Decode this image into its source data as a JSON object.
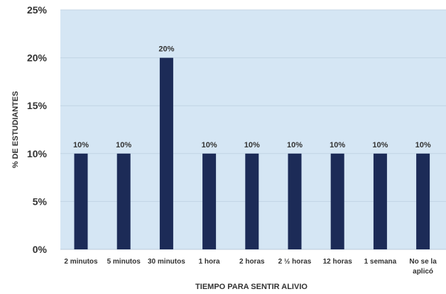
{
  "chart_data": {
    "type": "bar",
    "title": "",
    "xlabel": "TIEMPO PARA SENTIR ALIVIO",
    "ylabel": "% DE ESTUDIANTES",
    "ylim": [
      0,
      25
    ],
    "yticks": [
      "0%",
      "5%",
      "10%",
      "15%",
      "20%",
      "25%"
    ],
    "ytick_values": [
      0,
      5,
      10,
      15,
      20,
      25
    ],
    "categories": [
      "2 minutos",
      "5 minutos",
      "30 minutos",
      "1 hora",
      "2 horas",
      "2 ½ horas",
      "12 horas",
      "1 semana",
      "No se la aplicó"
    ],
    "values": [
      10,
      10,
      20,
      10,
      10,
      10,
      10,
      10,
      10
    ],
    "data_labels": [
      "10%",
      "10%",
      "20%",
      "10%",
      "10%",
      "10%",
      "10%",
      "10%",
      "10%"
    ],
    "grid": true,
    "legend": "none",
    "bar_color": "#1c2b57",
    "plot_background": "#d5e6f4",
    "grid_color": "#c2d4e4"
  }
}
